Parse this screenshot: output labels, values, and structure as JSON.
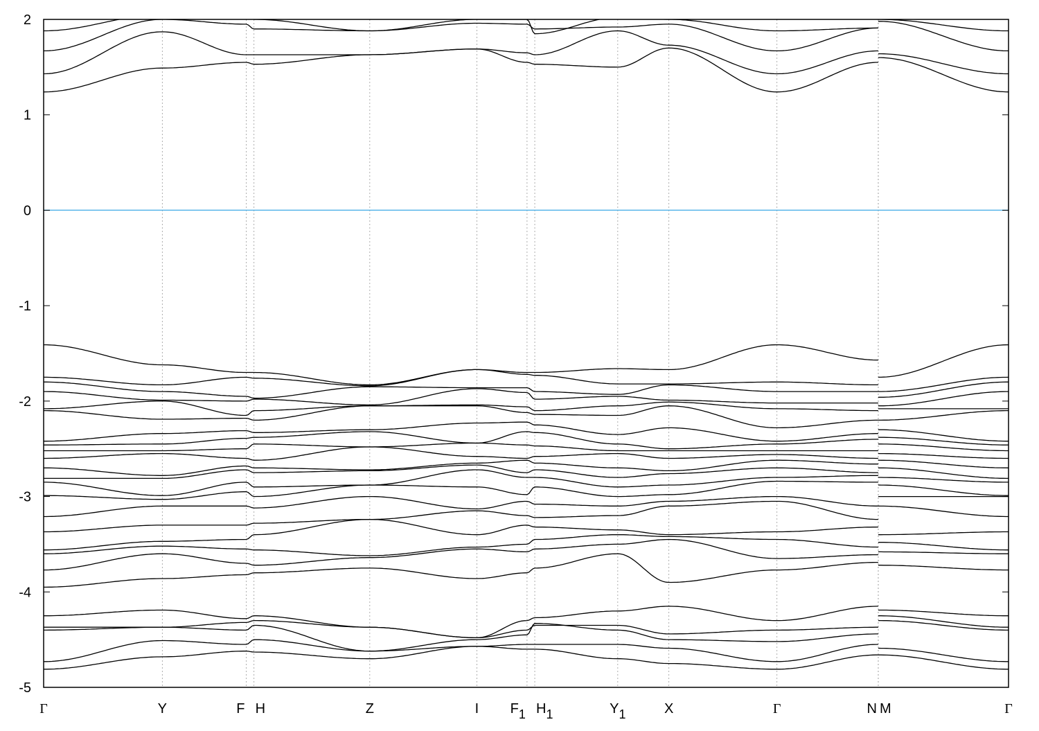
{
  "chart_data": {
    "type": "line",
    "title": "",
    "xlabel": "",
    "ylabel": "",
    "ylim": [
      -5,
      2
    ],
    "yticks": [
      "2",
      "1",
      "0",
      "-1",
      "-2",
      "-3",
      "-4",
      "-5"
    ],
    "grid": "vertical dashed lines at high-symmetry points",
    "fermi_level": 0,
    "fermi_color": "#56b4e9",
    "band_color": "#000000",
    "kpoints": [
      {
        "label": "Γ",
        "sub": "",
        "k": 0
      },
      {
        "label": "Y",
        "sub": "",
        "k": 1.23
      },
      {
        "label": "F",
        "sub": "",
        "k": 2.1
      },
      {
        "label": "H",
        "sub": "",
        "k": 2.18
      },
      {
        "label": "Z",
        "sub": "",
        "k": 3.38
      },
      {
        "label": "I",
        "sub": "",
        "k": 4.49
      },
      {
        "label": "F",
        "sub": "1",
        "k": 5.01
      },
      {
        "label": "H",
        "sub": "1",
        "k": 5.09
      },
      {
        "label": "Y",
        "sub": "1",
        "k": 5.95
      },
      {
        "label": "X",
        "sub": "",
        "k": 6.48
      },
      {
        "label": "Γ",
        "sub": "",
        "k": 7.6
      },
      {
        "label": "N",
        "sub": "",
        "k": 8.65
      },
      {
        "label": "M",
        "sub": "",
        "k": 8.65
      },
      {
        "label": "Γ",
        "sub": "",
        "k": 10.0
      }
    ],
    "path_break_after_index": 11,
    "bands": [
      [
        1.24,
        1.49,
        1.55,
        1.53,
        1.63,
        1.69,
        1.55,
        1.53,
        1.5,
        1.7,
        1.24,
        1.55,
        1.6,
        1.24
      ],
      [
        1.43,
        1.87,
        1.63,
        1.63,
        1.63,
        1.69,
        1.65,
        1.63,
        1.88,
        1.73,
        1.43,
        1.67,
        1.64,
        1.43
      ],
      [
        1.67,
        2.0,
        1.95,
        1.9,
        1.88,
        1.96,
        1.95,
        1.9,
        1.92,
        1.95,
        1.67,
        1.91,
        1.98,
        1.67
      ],
      [
        1.88,
        2.05,
        2.05,
        2.0,
        1.88,
        2.0,
        2.0,
        1.85,
        2.02,
        2.0,
        1.88,
        1.91,
        2.0,
        1.88
      ],
      [
        -1.41,
        -1.62,
        -1.7,
        -1.7,
        -1.83,
        -1.67,
        -1.7,
        -1.7,
        -1.66,
        -1.67,
        -1.41,
        -1.57,
        -1.75,
        -1.41
      ],
      [
        -1.75,
        -1.83,
        -1.75,
        -1.76,
        -1.84,
        -1.67,
        -1.72,
        -1.73,
        -1.82,
        -1.82,
        -1.8,
        -1.83,
        -1.9,
        -1.75
      ],
      [
        -1.8,
        -1.9,
        -1.95,
        -1.97,
        -1.85,
        -1.86,
        -1.86,
        -1.9,
        -1.93,
        -1.83,
        -1.9,
        -1.9,
        -1.96,
        -1.8
      ],
      [
        -1.9,
        -1.99,
        -2.0,
        -1.98,
        -2.04,
        -1.87,
        -1.91,
        -1.98,
        -1.95,
        -1.99,
        -2.02,
        -2.02,
        -2.05,
        -1.9
      ],
      [
        -2.08,
        -2.0,
        -2.15,
        -2.1,
        -2.05,
        -2.04,
        -2.06,
        -2.1,
        -2.05,
        -2.01,
        -2.08,
        -2.1,
        -2.08,
        -2.08
      ],
      [
        -2.1,
        -2.19,
        -2.18,
        -2.2,
        -2.05,
        -2.05,
        -2.12,
        -2.14,
        -2.15,
        -2.05,
        -2.28,
        -2.2,
        -2.2,
        -2.1
      ],
      [
        -2.42,
        -2.34,
        -2.31,
        -2.33,
        -2.3,
        -2.23,
        -2.22,
        -2.25,
        -2.35,
        -2.28,
        -2.42,
        -2.34,
        -2.3,
        -2.42
      ],
      [
        -2.46,
        -2.45,
        -2.39,
        -2.38,
        -2.32,
        -2.44,
        -2.32,
        -2.33,
        -2.45,
        -2.5,
        -2.45,
        -2.4,
        -2.38,
        -2.46
      ],
      [
        -2.52,
        -2.52,
        -2.5,
        -2.45,
        -2.48,
        -2.44,
        -2.46,
        -2.47,
        -2.52,
        -2.52,
        -2.52,
        -2.52,
        -2.45,
        -2.52
      ],
      [
        -2.6,
        -2.55,
        -2.6,
        -2.62,
        -2.48,
        -2.58,
        -2.6,
        -2.58,
        -2.55,
        -2.6,
        -2.56,
        -2.6,
        -2.55,
        -2.6
      ],
      [
        -2.7,
        -2.78,
        -2.68,
        -2.7,
        -2.72,
        -2.65,
        -2.62,
        -2.65,
        -2.7,
        -2.73,
        -2.62,
        -2.66,
        -2.62,
        -2.7
      ],
      [
        -2.81,
        -2.81,
        -2.72,
        -2.75,
        -2.73,
        -2.67,
        -2.75,
        -2.72,
        -2.8,
        -2.76,
        -2.7,
        -2.75,
        -2.7,
        -2.81
      ],
      [
        -2.85,
        -2.99,
        -2.85,
        -2.9,
        -2.88,
        -2.72,
        -2.8,
        -2.8,
        -2.9,
        -2.88,
        -2.8,
        -2.78,
        -2.8,
        -2.85
      ],
      [
        -2.99,
        -3.03,
        -2.95,
        -3.0,
        -2.88,
        -2.9,
        -2.98,
        -2.9,
        -3.0,
        -2.98,
        -2.84,
        -2.85,
        -2.88,
        -2.99
      ],
      [
        -3.21,
        -3.1,
        -3.1,
        -3.12,
        -3.0,
        -3.13,
        -3.05,
        -3.08,
        -3.1,
        -3.05,
        -3.0,
        -3.1,
        -3.0,
        -3.0
      ],
      [
        -3.37,
        -3.3,
        -3.3,
        -3.28,
        -3.24,
        -3.15,
        -3.2,
        -3.22,
        -3.2,
        -3.1,
        -3.05,
        -3.24,
        -3.1,
        -3.21
      ],
      [
        -3.56,
        -3.47,
        -3.45,
        -3.4,
        -3.24,
        -3.4,
        -3.3,
        -3.32,
        -3.35,
        -3.4,
        -3.37,
        -3.32,
        -3.4,
        -3.37
      ],
      [
        -3.6,
        -3.52,
        -3.55,
        -3.56,
        -3.62,
        -3.53,
        -3.5,
        -3.45,
        -3.4,
        -3.42,
        -3.45,
        -3.53,
        -3.48,
        -3.56
      ],
      [
        -3.77,
        -3.6,
        -3.7,
        -3.72,
        -3.64,
        -3.55,
        -3.58,
        -3.55,
        -3.5,
        -3.45,
        -3.65,
        -3.61,
        -3.58,
        -3.6
      ],
      [
        -3.95,
        -3.86,
        -3.82,
        -3.8,
        -3.75,
        -3.86,
        -3.8,
        -3.75,
        -3.6,
        -3.9,
        -3.77,
        -3.69,
        -3.72,
        -3.77
      ],
      [
        -4.25,
        -4.19,
        -4.28,
        -4.25,
        -4.37,
        -4.48,
        -4.3,
        -4.27,
        -4.2,
        -4.15,
        -4.3,
        -4.15,
        -4.19,
        -4.25
      ],
      [
        -4.37,
        -4.37,
        -4.32,
        -4.3,
        -4.37,
        -4.48,
        -4.4,
        -4.35,
        -4.35,
        -4.44,
        -4.4,
        -4.37,
        -4.25,
        -4.37
      ],
      [
        -4.4,
        -4.37,
        -4.4,
        -4.35,
        -4.62,
        -4.5,
        -4.45,
        -4.33,
        -4.4,
        -4.5,
        -4.52,
        -4.44,
        -4.3,
        -4.4
      ],
      [
        -4.73,
        -4.51,
        -4.55,
        -4.5,
        -4.62,
        -4.57,
        -4.55,
        -4.55,
        -4.55,
        -4.59,
        -4.73,
        -4.55,
        -4.59,
        -4.73
      ],
      [
        -4.81,
        -4.68,
        -4.62,
        -4.63,
        -4.7,
        -4.57,
        -4.6,
        -4.6,
        -4.7,
        -4.75,
        -4.81,
        -4.66,
        -4.66,
        -4.81
      ]
    ]
  }
}
